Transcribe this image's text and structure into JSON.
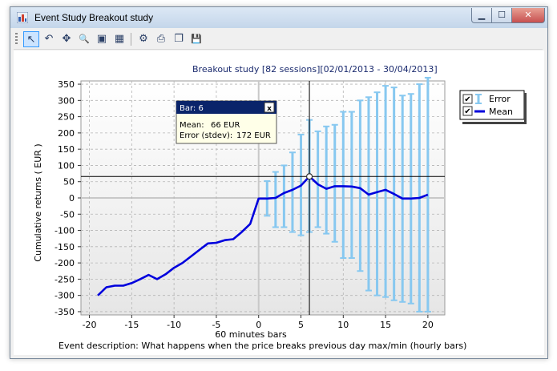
{
  "window": {
    "title": "Event Study Breakout study",
    "buttons": {
      "minimize": "▁",
      "maximize": "☐",
      "close": "✕"
    }
  },
  "toolbar": {
    "tools": [
      {
        "icon": "pointer-icon",
        "glyph": "↖"
      },
      {
        "icon": "undo-icon",
        "glyph": "↶"
      },
      {
        "icon": "pan-icon",
        "glyph": "✥"
      },
      {
        "icon": "zoom-icon",
        "glyph": "🔍"
      },
      {
        "icon": "image-icon",
        "glyph": "▣"
      },
      {
        "icon": "chart-icon",
        "glyph": "▦"
      },
      {
        "icon": "settings-icon",
        "glyph": "⚙"
      },
      {
        "icon": "print-icon",
        "glyph": "⎙"
      },
      {
        "icon": "copy-icon",
        "glyph": "❐"
      },
      {
        "icon": "save-icon",
        "glyph": "💾"
      }
    ]
  },
  "tooltip": {
    "title": "Bar: 6",
    "mean_label": "Mean:",
    "mean_value": "66 EUR",
    "error_label": "Error (stdev):",
    "error_value": "172 EUR"
  },
  "legend": {
    "error": "Error",
    "mean": "Mean"
  },
  "description": "Event description: What happens when the price breaks previous day max/min (hourly bars)",
  "colors": {
    "mean": "#0000dd",
    "error": "#87c8f0",
    "crosshair": "#000000",
    "plot_bg_top": "#ffffff",
    "plot_bg_bottom": "#e6e6e6"
  },
  "chart_data": {
    "type": "line",
    "title": "Breakout study  [82 sessions][02/01/2013 - 30/04/2013]",
    "xlabel": "60 minutes bars",
    "ylabel": "Cumulative returns ( EUR )",
    "xlim": [
      -21,
      22
    ],
    "ylim": [
      -360,
      360
    ],
    "x_ticks": [
      -20,
      -15,
      -10,
      -5,
      0,
      5,
      10,
      15,
      20
    ],
    "y_ticks": [
      -350,
      -300,
      -250,
      -200,
      -150,
      -100,
      -50,
      0,
      50,
      100,
      150,
      200,
      250,
      300,
      350
    ],
    "grid": true,
    "legend_position": "right",
    "crosshair": {
      "x": 6,
      "y": 66
    },
    "series": [
      {
        "name": "Mean",
        "x": [
          -19,
          -18,
          -17,
          -16,
          -15,
          -14,
          -13,
          -12,
          -11,
          -10,
          -9,
          -8,
          -7,
          -6,
          -5,
          -4,
          -3,
          -2,
          -1,
          0,
          1,
          2,
          3,
          4,
          5,
          6,
          7,
          8,
          9,
          10,
          11,
          12,
          13,
          14,
          15,
          16,
          17,
          18,
          19,
          20
        ],
        "y": [
          -300,
          -275,
          -270,
          -270,
          -262,
          -250,
          -237,
          -250,
          -235,
          -215,
          -200,
          -180,
          -160,
          -140,
          -138,
          -130,
          -127,
          -105,
          -80,
          -2,
          -2,
          0,
          15,
          25,
          38,
          66,
          42,
          28,
          36,
          36,
          35,
          30,
          10,
          18,
          25,
          12,
          -2,
          -2,
          0,
          10
        ]
      },
      {
        "name": "Error",
        "x": [
          0,
          1,
          2,
          3,
          4,
          5,
          6,
          7,
          8,
          9,
          10,
          11,
          12,
          13,
          14,
          15,
          16,
          17,
          18,
          19,
          20
        ],
        "low": [
          0,
          -55,
          -90,
          -90,
          -105,
          -115,
          -105,
          -90,
          -110,
          -135,
          -185,
          -185,
          -225,
          -285,
          -300,
          -305,
          -315,
          -320,
          -325,
          -350,
          -350
        ],
        "high": [
          0,
          52,
          80,
          100,
          140,
          195,
          240,
          205,
          220,
          225,
          265,
          265,
          300,
          310,
          325,
          345,
          340,
          315,
          320,
          350,
          370
        ]
      }
    ]
  }
}
